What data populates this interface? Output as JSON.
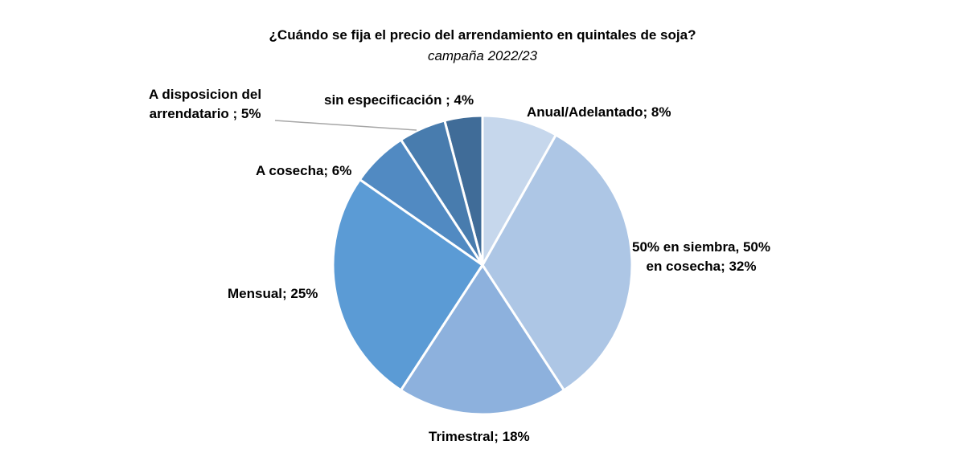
{
  "chart_data": {
    "type": "pie",
    "title": "¿Cuándo se fija el precio del arrendamiento en quintales de soja?",
    "subtitle": "campaña 2022/23",
    "slices": [
      {
        "label": "Anual/Adelantado; 8%",
        "value": 8,
        "color": "#C6D7EC"
      },
      {
        "label_lines": [
          "50% en siembra, 50%",
          "en cosecha; 32%"
        ],
        "value": 32,
        "color": "#ADC6E5"
      },
      {
        "label": "Trimestral; 18%",
        "value": 18,
        "color": "#8DB1DD"
      },
      {
        "label": "Mensual; 25%",
        "value": 25,
        "color": "#5B9BD5"
      },
      {
        "label": "A cosecha; 6%",
        "value": 6,
        "color": "#518AC2"
      },
      {
        "label_lines": [
          "A disposicion del",
          "arrendatario ; 5%"
        ],
        "value": 5,
        "color": "#487CAE"
      },
      {
        "label": "sin especificación ; 4%",
        "value": 4,
        "color": "#406C98"
      }
    ]
  }
}
